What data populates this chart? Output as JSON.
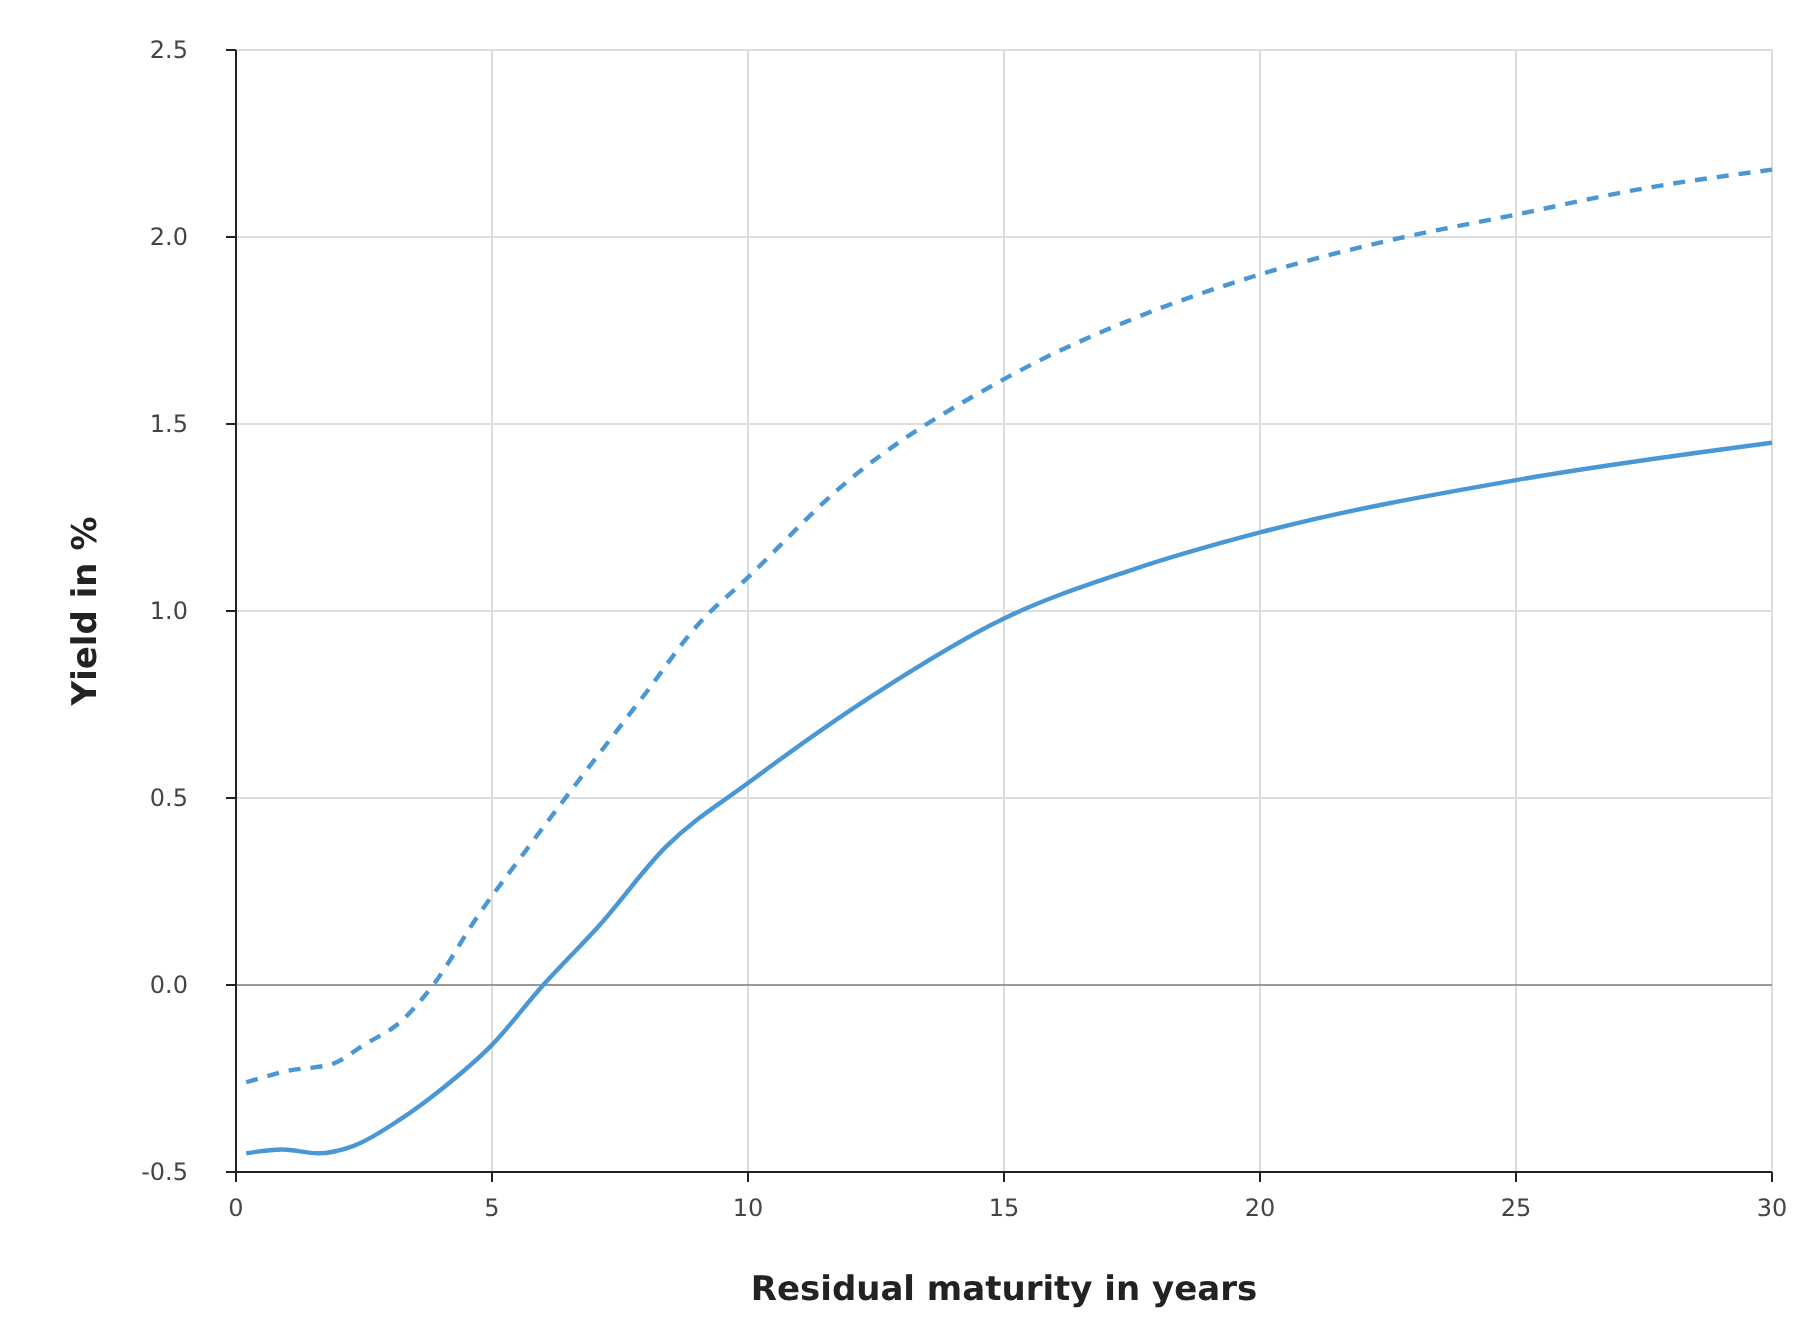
{
  "chart_data": {
    "type": "line",
    "xlabel": "Residual maturity in years",
    "ylabel": "Yield in %",
    "xlim": [
      0,
      30
    ],
    "xticks": [
      0,
      5,
      10,
      15,
      20,
      25,
      30
    ],
    "ylim": [
      -0.5,
      2.5
    ],
    "yticks": [
      {
        "value": -0.5,
        "label": "-0.5"
      },
      {
        "value": 0,
        "label": "0.0"
      },
      {
        "value": 0.5,
        "label": "0.5"
      },
      {
        "value": 1,
        "label": "1.0"
      },
      {
        "value": 1.5,
        "label": "1.5"
      },
      {
        "value": 2,
        "label": "2.0"
      },
      {
        "value": 2.5,
        "label": "2.5"
      }
    ],
    "grid": true,
    "ref_lines": [
      {
        "axis": "y",
        "value": 0,
        "color": "#999999"
      }
    ],
    "series": [
      {
        "color": "#4a97d6",
        "line_style": "solid",
        "x": [
          0.2,
          0.9,
          1.6,
          2.3,
          3.2,
          4,
          5,
          6,
          7.1,
          8.4,
          10,
          12.5,
          15,
          17.5,
          20,
          25,
          30
        ],
        "values": [
          -0.45,
          -0.44,
          -0.45,
          -0.43,
          -0.36,
          -0.28,
          -0.16,
          0,
          0.16,
          0.37,
          0.54,
          0.78,
          0.98,
          1.11,
          1.21,
          1.35,
          1.45
        ]
      },
      {
        "color": "#4a97d6",
        "line_style": "dashed",
        "x": [
          0.2,
          1,
          1.9,
          2.5,
          3.2,
          3.85,
          4.75,
          5.5,
          6.6,
          8,
          9,
          10,
          11.8,
          15,
          17.5,
          20,
          22.5,
          25,
          27.5,
          30
        ],
        "values": [
          -0.26,
          -0.23,
          -0.21,
          -0.16,
          -0.1,
          0,
          0.19,
          0.33,
          0.53,
          0.78,
          0.96,
          1.09,
          1.33,
          1.62,
          1.78,
          1.9,
          1.99,
          2.06,
          2.13,
          2.18
        ]
      }
    ]
  }
}
